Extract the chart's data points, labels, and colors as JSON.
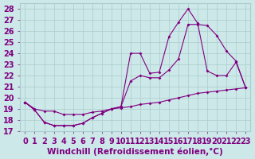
{
  "xlabel": "Windchill (Refroidissement éolien,°C)",
  "bg_color": "#cce8e8",
  "line_color": "#800080",
  "xlim": [
    -0.5,
    23.5
  ],
  "ylim": [
    17,
    28.5
  ],
  "yticks": [
    17,
    18,
    19,
    20,
    21,
    22,
    23,
    24,
    25,
    26,
    27,
    28
  ],
  "xticks": [
    0,
    1,
    2,
    3,
    4,
    5,
    6,
    7,
    8,
    9,
    10,
    11,
    12,
    13,
    14,
    15,
    16,
    17,
    18,
    19,
    20,
    21,
    22,
    23
  ],
  "line1_x": [
    0,
    1,
    2,
    3,
    4,
    5,
    6,
    7,
    8,
    9,
    10,
    11,
    12,
    13,
    14,
    15,
    16,
    17,
    18,
    19,
    20,
    21,
    22,
    23
  ],
  "line1_y": [
    19.6,
    19.0,
    18.8,
    18.8,
    18.5,
    18.5,
    18.5,
    18.7,
    18.8,
    19.0,
    19.1,
    19.2,
    19.4,
    19.5,
    19.6,
    19.8,
    20.0,
    20.2,
    20.4,
    20.5,
    20.6,
    20.7,
    20.8,
    20.9
  ],
  "line2_x": [
    0,
    1,
    2,
    3,
    4,
    5,
    6,
    7,
    8,
    9,
    10,
    11,
    12,
    13,
    14,
    15,
    16,
    17,
    18,
    19,
    20,
    21,
    22,
    23
  ],
  "line2_y": [
    19.6,
    18.9,
    17.8,
    17.5,
    17.5,
    17.5,
    17.7,
    18.2,
    18.6,
    19.0,
    19.2,
    24.0,
    24.0,
    22.2,
    22.3,
    25.5,
    26.8,
    28.0,
    26.7,
    22.4,
    22.0,
    22.0,
    23.2,
    20.9
  ],
  "line3_x": [
    0,
    1,
    2,
    3,
    4,
    5,
    6,
    7,
    8,
    9,
    10,
    11,
    12,
    13,
    14,
    15,
    16,
    17,
    18,
    19,
    20,
    21,
    22,
    23
  ],
  "line3_y": [
    19.6,
    18.9,
    17.8,
    17.5,
    17.5,
    17.5,
    17.7,
    18.2,
    18.6,
    19.0,
    19.2,
    21.5,
    22.0,
    21.8,
    21.8,
    22.5,
    23.5,
    26.6,
    26.6,
    26.5,
    25.6,
    24.2,
    23.3,
    20.9
  ],
  "grid_color": "#aacccc",
  "font_color": "#800080",
  "tick_fontsize": 7,
  "label_fontsize": 7.5
}
